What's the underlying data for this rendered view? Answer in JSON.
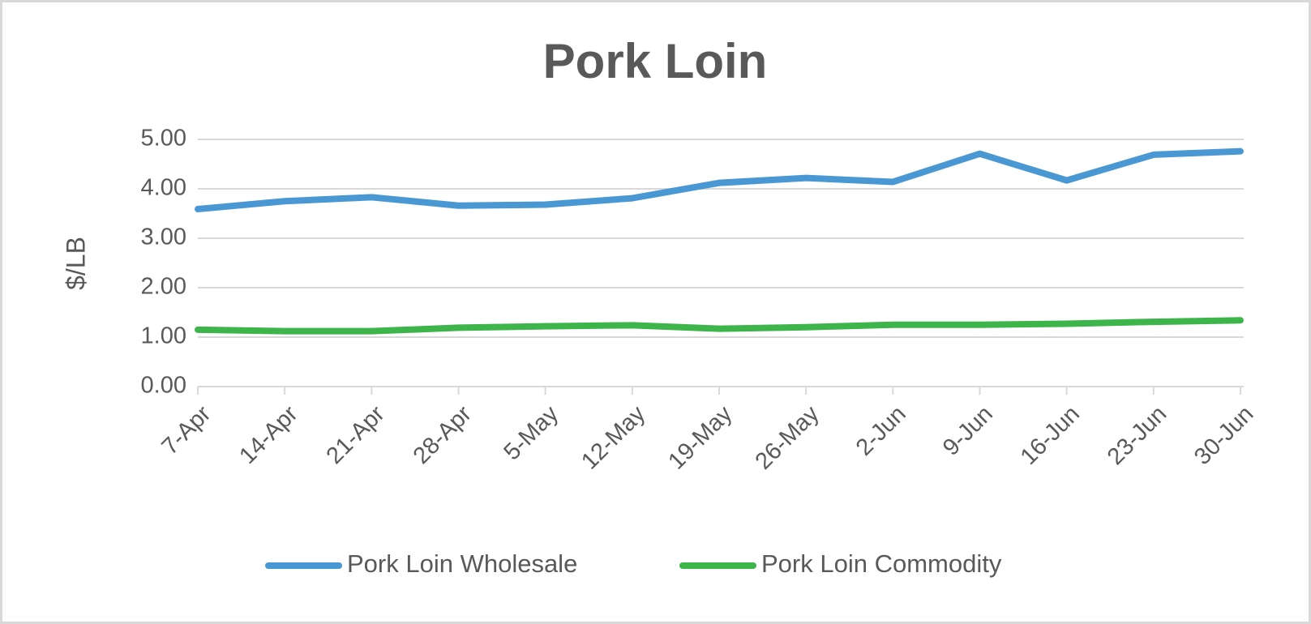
{
  "chart_data": {
    "type": "line",
    "title": "Pork Loin",
    "y_label": "$/LB",
    "categories": [
      "7-Apr",
      "14-Apr",
      "21-Apr",
      "28-Apr",
      "5-May",
      "12-May",
      "19-May",
      "26-May",
      "2-Jun",
      "9-Jun",
      "16-Jun",
      "23-Jun",
      "30-Jun"
    ],
    "series": [
      {
        "name": "Pork Loin Wholesale",
        "color": "#4a98d3",
        "values": [
          3.59,
          3.75,
          3.83,
          3.66,
          3.68,
          3.81,
          4.12,
          4.22,
          4.14,
          4.71,
          4.17,
          4.69,
          4.76
        ]
      },
      {
        "name": "Pork Loin Commodity",
        "color": "#3db54a",
        "values": [
          1.15,
          1.12,
          1.12,
          1.19,
          1.22,
          1.24,
          1.17,
          1.2,
          1.25,
          1.25,
          1.27,
          1.31,
          1.34
        ]
      }
    ],
    "ylim": [
      0,
      5
    ],
    "yticks": [
      {
        "value": 0,
        "label": "0.00"
      },
      {
        "value": 1,
        "label": "1.00"
      },
      {
        "value": 2,
        "label": "2.00"
      },
      {
        "value": 3,
        "label": "3.00"
      },
      {
        "value": 4,
        "label": "4.00"
      },
      {
        "value": 5,
        "label": "5.00"
      }
    ],
    "grid": true,
    "legend": "bottom"
  }
}
